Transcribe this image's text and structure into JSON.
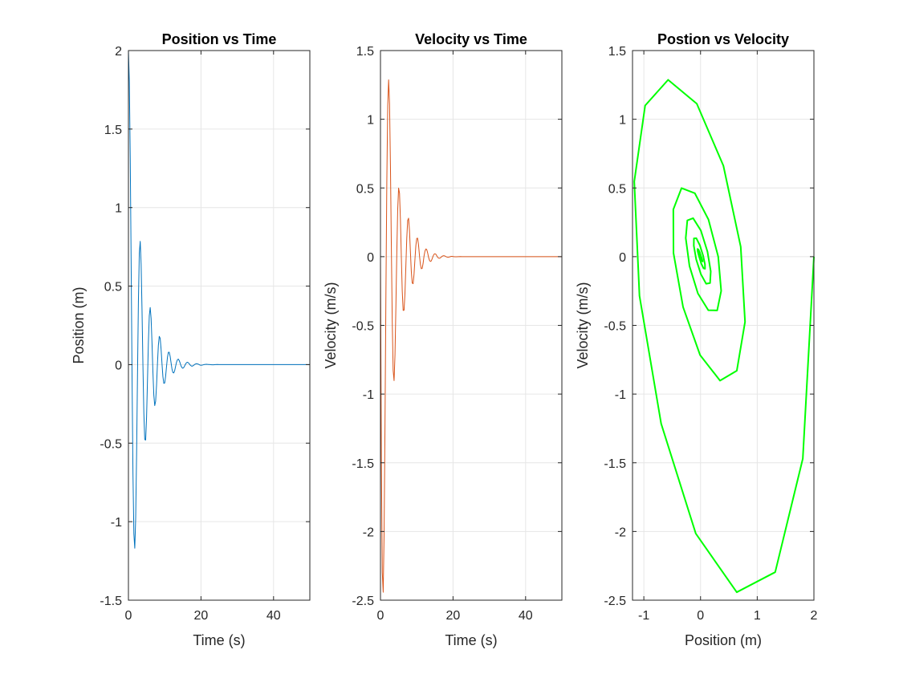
{
  "chart_data": [
    {
      "type": "line",
      "title": "Position vs Time",
      "xlabel": "Time (s)",
      "ylabel": "Position (m)",
      "xlim": [
        0,
        50
      ],
      "ylim": [
        -1.5,
        2
      ],
      "xticks": [
        0,
        20,
        40
      ],
      "xtick_labels": [
        "0",
        "20",
        "40"
      ],
      "yticks": [
        -1.5,
        -1,
        -0.5,
        0,
        0.5,
        1,
        1.5,
        2
      ],
      "ytick_labels": [
        "-1.5",
        "-1",
        "-0.5",
        "0",
        "0.5",
        "1",
        "1.5",
        "2"
      ],
      "grid": true,
      "color": "#0072BD",
      "series": [
        {
          "x": [
            0,
            0.25,
            0.5,
            0.75,
            1.0,
            1.25,
            1.5,
            1.75,
            2.0,
            2.25,
            2.5,
            2.75,
            3.0,
            3.25,
            3.5,
            3.75,
            4.0,
            4.25,
            4.5,
            4.75,
            5.0,
            5.25,
            5.5,
            5.75,
            6.0,
            6.25,
            6.5,
            6.75,
            7.0,
            7.25,
            7.5,
            7.75,
            8.0,
            8.25,
            8.5,
            8.75,
            9.0,
            9.25,
            9.5,
            9.75,
            10.0,
            10.25,
            10.5,
            10.75,
            11.0,
            11.25,
            11.5,
            11.75,
            12.0,
            12.25,
            12.5,
            12.75,
            13.0,
            13.25,
            13.5,
            13.75,
            14.0,
            14.25,
            14.5,
            14.75,
            15.0,
            15.25,
            15.5,
            15.75,
            16.0,
            16.25,
            16.5,
            16.75,
            17.0,
            17.25,
            17.5,
            17.75,
            18.0,
            18.25,
            18.5,
            18.75,
            19.0,
            19.25,
            19.5,
            19.75,
            20.0,
            20.5,
            21.0,
            21.5,
            22.0,
            22.5,
            23.0,
            23.5,
            24.0,
            24.5,
            25.0,
            25.5,
            26.0,
            26.5,
            27.0,
            27.5,
            28.0,
            28.5,
            29.0,
            29.5,
            30.0,
            31.0,
            32.0,
            33.0,
            34.0,
            35.0,
            36.0,
            37.0,
            38.0,
            39.0,
            40.0,
            42.0,
            44.0,
            46.0,
            48.0,
            50.0
          ],
          "y": [
            2.0,
            1.804,
            1.317,
            0.639,
            -0.084,
            -0.695,
            -1.077,
            -1.169,
            -0.977,
            -0.572,
            -0.066,
            0.403,
            0.709,
            0.785,
            0.64,
            0.344,
            -0.008,
            -0.308,
            -0.477,
            -0.48,
            -0.335,
            -0.101,
            0.14,
            0.312,
            0.364,
            0.294,
            0.137,
            -0.047,
            -0.195,
            -0.261,
            -0.233,
            -0.131,
            0.006,
            0.122,
            0.18,
            0.168,
            0.099,
            0.007,
            -0.076,
            -0.119,
            -0.117,
            -0.074,
            -0.012,
            0.045,
            0.078,
            0.079,
            0.053,
            0.012,
            -0.027,
            -0.05,
            -0.053,
            -0.038,
            -0.011,
            0.015,
            0.031,
            0.035,
            0.026,
            0.01,
            -0.008,
            -0.019,
            -0.023,
            -0.018,
            -0.008,
            0.004,
            0.012,
            0.015,
            0.012,
            0.006,
            -0.002,
            -0.007,
            -0.01,
            -0.008,
            -0.004,
            0.001,
            0.004,
            0.006,
            0.005,
            0.003,
            -0.0,
            -0.003,
            -0.004,
            -0.002,
            0.001,
            0.002,
            0.001,
            -0.0,
            -0.001,
            -0.001,
            0.0,
            0.001,
            0.0,
            -0.0,
            -0.0,
            0.0,
            0.0,
            0.0,
            -0.0,
            0.0,
            0.0,
            0.0,
            0.0,
            0.0,
            0.0,
            0.0,
            0.0,
            0.0,
            0.0,
            0.0,
            0.0,
            0.0,
            0.0,
            0.0,
            0.0,
            0.0,
            0.0,
            0.0
          ]
        }
      ]
    },
    {
      "type": "line",
      "title": "Velocity vs Time",
      "xlabel": "Time (s)",
      "ylabel": "Velocity (m/s)",
      "xlim": [
        0,
        50
      ],
      "ylim": [
        -2.5,
        1.5
      ],
      "xticks": [
        0,
        20,
        40
      ],
      "xtick_labels": [
        "0",
        "20",
        "40"
      ],
      "yticks": [
        -2.5,
        -2,
        -1.5,
        -1,
        -0.5,
        0,
        0.5,
        1,
        1.5
      ],
      "ytick_labels": [
        "-2.5",
        "-2",
        "-1.5",
        "-1",
        "-0.5",
        "0",
        "0.5",
        "1",
        "1.5"
      ],
      "grid": true,
      "color": "#D95319",
      "series": [
        {
          "x": [
            0,
            0.25,
            0.5,
            0.75,
            1.0,
            1.25,
            1.5,
            1.75,
            2.0,
            2.25,
            2.5,
            2.75,
            3.0,
            3.25,
            3.5,
            3.75,
            4.0,
            4.25,
            4.5,
            4.75,
            5.0,
            5.25,
            5.5,
            5.75,
            6.0,
            6.25,
            6.5,
            6.75,
            7.0,
            7.25,
            7.5,
            7.75,
            8.0,
            8.25,
            8.5,
            8.75,
            9.0,
            9.25,
            9.5,
            9.75,
            10.0,
            10.25,
            10.5,
            10.75,
            11.0,
            11.25,
            11.5,
            11.75,
            12.0,
            12.25,
            12.5,
            12.75,
            13.0,
            13.25,
            13.5,
            13.75,
            14.0,
            14.25,
            14.5,
            14.75,
            15.0,
            15.25,
            15.5,
            15.75,
            16.0,
            16.25,
            16.5,
            16.75,
            17.0,
            17.25,
            17.5,
            17.75,
            18.0,
            18.25,
            18.5,
            18.75,
            19.0,
            19.25,
            19.5,
            19.75,
            20.0,
            20.5,
            21.0,
            21.5,
            22.0,
            22.5,
            23.0,
            23.5,
            24.0,
            24.5,
            25.0,
            25.5,
            26.0,
            26.5,
            27.0,
            27.5,
            28.0,
            28.5,
            29.0,
            29.5,
            30.0,
            31.0,
            32.0,
            33.0,
            34.0,
            35.0,
            36.0,
            37.0,
            38.0,
            39.0,
            40.0,
            42.0,
            44.0,
            46.0,
            48.0,
            50.0
          ],
          "y": [
            0.0,
            -1.47,
            -2.296,
            -2.442,
            -2.015,
            -1.215,
            -0.285,
            0.547,
            1.1,
            1.287,
            1.113,
            0.662,
            0.072,
            -0.475,
            -0.83,
            -0.902,
            -0.716,
            -0.367,
            0.026,
            0.344,
            0.499,
            0.462,
            0.27,
            0.0,
            -0.249,
            -0.391,
            -0.39,
            -0.267,
            -0.068,
            0.135,
            0.264,
            0.28,
            0.19,
            0.037,
            -0.107,
            -0.192,
            -0.197,
            -0.128,
            -0.021,
            0.08,
            0.133,
            0.134,
            0.083,
            0.008,
            -0.055,
            -0.088,
            -0.085,
            -0.049,
            0.003,
            0.039,
            0.056,
            0.052,
            0.028,
            -0.004,
            -0.026,
            -0.035,
            -0.031,
            -0.015,
            0.004,
            0.017,
            0.021,
            0.018,
            0.007,
            -0.004,
            -0.01,
            -0.012,
            -0.009,
            -0.003,
            0.003,
            0.006,
            0.007,
            0.005,
            0.001,
            -0.002,
            -0.004,
            -0.004,
            -0.002,
            0.0,
            0.002,
            0.002,
            0.001,
            -0.001,
            -0.001,
            0.0,
            0.001,
            0.0,
            -0.0,
            -0.0,
            0.0,
            0.0,
            0.0,
            -0.0,
            0.0,
            0.0,
            0.0,
            0.0,
            0.0,
            0.0,
            0.0,
            0.0,
            0.0,
            0.0,
            0.0,
            0.0,
            0.0,
            0.0,
            0.0,
            0.0,
            0.0,
            0.0,
            0.0,
            0.0,
            0.0,
            0.0,
            0.0,
            0.0
          ]
        }
      ]
    },
    {
      "type": "line",
      "title": "Postion vs Velocity",
      "xlabel": "Position (m)",
      "ylabel": "Velocity (m/s)",
      "xlim": [
        -1.2,
        2
      ],
      "ylim": [
        -2.5,
        1.5
      ],
      "xticks": [
        -1,
        0,
        1,
        2
      ],
      "xtick_labels": [
        "-1",
        "0",
        "1",
        "2"
      ],
      "yticks": [
        -2.5,
        -2,
        -1.5,
        -1,
        -0.5,
        0,
        0.5,
        1,
        1.5
      ],
      "ytick_labels": [
        "-2.5",
        "-2",
        "-1.5",
        "-1",
        "-0.5",
        "0",
        "0.5",
        "1",
        "1.5"
      ],
      "grid": true,
      "color": "#00FF00",
      "series": [
        {
          "x": [
            2.0,
            1.804,
            1.317,
            0.639,
            -0.084,
            -0.695,
            -1.077,
            -1.169,
            -0.977,
            -0.572,
            -0.066,
            0.403,
            0.709,
            0.785,
            0.64,
            0.344,
            -0.008,
            -0.308,
            -0.477,
            -0.48,
            -0.335,
            -0.101,
            0.14,
            0.312,
            0.364,
            0.294,
            0.137,
            -0.047,
            -0.195,
            -0.261,
            -0.233,
            -0.131,
            0.006,
            0.122,
            0.18,
            0.168,
            0.099,
            0.007,
            -0.076,
            -0.119,
            -0.117,
            -0.074,
            -0.012,
            0.045,
            0.078,
            0.079,
            0.053,
            0.012,
            -0.027,
            -0.05,
            -0.053,
            -0.038,
            -0.011,
            0.015,
            0.031,
            0.035,
            0.026,
            0.01,
            -0.008,
            -0.019,
            -0.023,
            -0.018,
            -0.008,
            0.004,
            0.012,
            0.015,
            0.012,
            0.006,
            -0.002,
            -0.007,
            -0.01,
            -0.008,
            -0.004,
            0.001,
            0.004,
            0.006,
            0.005,
            0.003,
            -0.0,
            -0.003,
            -0.004,
            -0.002,
            0.001,
            0.002,
            0.001,
            -0.0,
            -0.001,
            -0.001,
            0.0,
            0.001,
            0.0,
            -0.0,
            -0.0,
            0.0,
            0.0,
            0.0,
            -0.0,
            0.0,
            0.0,
            0.0,
            0.0,
            0.0,
            0.0,
            0.0,
            0.0,
            0.0,
            0.0,
            0.0,
            0.0,
            0.0,
            0.0,
            0.0,
            0.0,
            0.0,
            0.0,
            0.0
          ],
          "y": [
            0.0,
            -1.47,
            -2.296,
            -2.442,
            -2.015,
            -1.215,
            -0.285,
            0.547,
            1.1,
            1.287,
            1.113,
            0.662,
            0.072,
            -0.475,
            -0.83,
            -0.902,
            -0.716,
            -0.367,
            0.026,
            0.344,
            0.499,
            0.462,
            0.27,
            0.0,
            -0.249,
            -0.391,
            -0.39,
            -0.267,
            -0.068,
            0.135,
            0.264,
            0.28,
            0.19,
            0.037,
            -0.107,
            -0.192,
            -0.197,
            -0.128,
            -0.021,
            0.08,
            0.133,
            0.134,
            0.083,
            0.008,
            -0.055,
            -0.088,
            -0.085,
            -0.049,
            0.003,
            0.039,
            0.056,
            0.052,
            0.028,
            -0.004,
            -0.026,
            -0.035,
            -0.031,
            -0.015,
            0.004,
            0.017,
            0.021,
            0.018,
            0.007,
            -0.004,
            -0.01,
            -0.012,
            -0.009,
            -0.003,
            0.003,
            0.006,
            0.007,
            0.005,
            0.001,
            -0.002,
            -0.004,
            -0.004,
            -0.002,
            0.0,
            0.002,
            0.002,
            0.001,
            -0.001,
            -0.001,
            0.0,
            0.001,
            0.0,
            -0.0,
            -0.0,
            0.0,
            0.0,
            0.0,
            -0.0,
            0.0,
            0.0,
            0.0,
            0.0,
            0.0,
            0.0,
            0.0,
            0.0,
            0.0,
            0.0,
            0.0,
            0.0,
            0.0,
            0.0,
            0.0,
            0.0,
            0.0,
            0.0,
            0.0,
            0.0,
            0.0,
            0.0,
            0.0,
            0.0
          ]
        }
      ]
    }
  ]
}
